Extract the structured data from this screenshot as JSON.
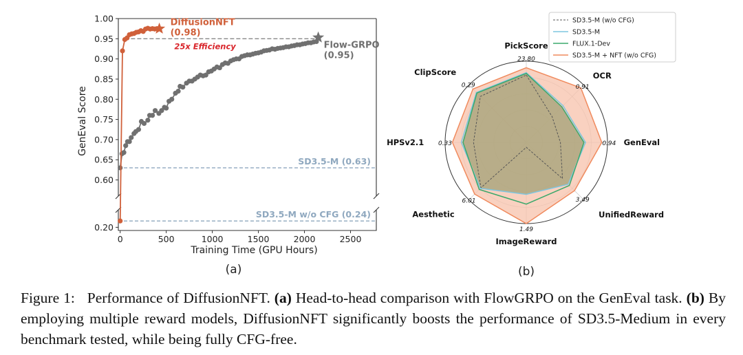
{
  "caption": {
    "figure_label": "Figure 1:",
    "text_1": "Performance of DiffusionNFT.",
    "part_a_label": "(a)",
    "text_2": "Head-to-head comparison with FlowGRPO on the GenEval task.",
    "part_b_label": "(b)",
    "text_3": "By employing multiple reward models, DiffusionNFT significantly boosts the performance of SD3.5-Medium in every benchmark tested, while being fully CFG-free."
  },
  "chart_data": [
    {
      "type": "line",
      "panel_label": "(a)",
      "xlabel": "Training Time (GPU Hours)",
      "ylabel": "GenEval Score",
      "xlim": [
        -20,
        2780
      ],
      "ylim_upper": [
        0.56,
        1.0
      ],
      "ylim_lower": [
        0.18,
        0.31
      ],
      "broken_y_axis": true,
      "x_ticks": [
        0,
        500,
        1000,
        1500,
        2000,
        2500
      ],
      "y_ticks_upper": [
        "0.60",
        "0.65",
        "0.70",
        "0.75",
        "0.80",
        "0.85",
        "0.90",
        "0.95",
        "1.00"
      ],
      "y_ticks_lower": [
        "0.20"
      ],
      "colors": {
        "diffusionnft": "#d0603a",
        "flowgrpo": "#707070",
        "baseline": "#8fa8bf"
      },
      "series": [
        {
          "name": "DiffusionNFT",
          "label": "DiffusionNFT",
          "final_label": "(0.98)",
          "x": [
            0,
            25,
            50,
            75,
            100,
            125,
            150,
            175,
            200,
            225,
            250,
            275,
            300,
            325,
            350,
            375,
            400,
            425
          ],
          "y": [
            0.24,
            0.92,
            0.948,
            0.952,
            0.96,
            0.962,
            0.963,
            0.966,
            0.967,
            0.97,
            0.968,
            0.974,
            0.976,
            0.974,
            0.975,
            0.974,
            0.975,
            0.975
          ]
        },
        {
          "name": "Flow-GRPO",
          "label": "Flow-GRPO",
          "final_label": "(0.95)",
          "x": [
            0,
            20,
            40,
            60,
            80,
            100,
            120,
            150,
            170,
            200,
            230,
            260,
            300,
            320,
            350,
            380,
            420,
            450,
            480,
            500,
            530,
            560,
            600,
            630,
            650,
            680,
            720,
            750,
            780,
            810,
            840,
            870,
            900,
            930,
            960,
            990,
            1020,
            1050,
            1080,
            1110,
            1140,
            1170,
            1200,
            1230,
            1260,
            1290,
            1320,
            1350,
            1380,
            1410,
            1440,
            1470,
            1500,
            1530,
            1560,
            1590,
            1620,
            1650,
            1680,
            1710,
            1740,
            1770,
            1800,
            1830,
            1860,
            1890,
            1920,
            1950,
            1980,
            2010,
            2040,
            2070,
            2100,
            2130,
            2150
          ],
          "y": [
            0.63,
            0.665,
            0.668,
            0.685,
            0.695,
            0.695,
            0.705,
            0.715,
            0.72,
            0.725,
            0.745,
            0.74,
            0.748,
            0.76,
            0.76,
            0.772,
            0.765,
            0.772,
            0.78,
            0.778,
            0.795,
            0.8,
            0.815,
            0.82,
            0.832,
            0.83,
            0.84,
            0.845,
            0.845,
            0.85,
            0.855,
            0.86,
            0.858,
            0.86,
            0.868,
            0.87,
            0.875,
            0.88,
            0.878,
            0.886,
            0.89,
            0.889,
            0.895,
            0.898,
            0.9,
            0.9,
            0.906,
            0.908,
            0.91,
            0.91,
            0.912,
            0.914,
            0.915,
            0.917,
            0.92,
            0.921,
            0.922,
            0.925,
            0.924,
            0.926,
            0.927,
            0.928,
            0.93,
            0.93,
            0.932,
            0.933,
            0.935,
            0.935,
            0.937,
            0.938,
            0.94,
            0.94,
            0.942,
            0.943,
            0.953
          ]
        }
      ],
      "reference_lines": [
        {
          "label": "SD3.5-M (0.63)",
          "y": 0.63
        },
        {
          "label": "SD3.5-M w/o CFG (0.24)",
          "y": 0.24
        }
      ],
      "annotation": "25x Efficiency",
      "annotation_line_y": 0.95
    },
    {
      "type": "radar",
      "panel_label": "(b)",
      "axes": [
        {
          "name": "PickScore",
          "value_label": "23.80"
        },
        {
          "name": "OCR",
          "value_label": "0.91"
        },
        {
          "name": "GenEval",
          "value_label": "0.94"
        },
        {
          "name": "UnifiedReward",
          "value_label": "3.49"
        },
        {
          "name": "ImageReward",
          "value_label": "1.49"
        },
        {
          "name": "Aesthetic",
          "value_label": "6.01"
        },
        {
          "name": "HPSv2.1",
          "value_label": "0.33"
        },
        {
          "name": "ClipScore",
          "value_label": "0.29"
        }
      ],
      "series": [
        {
          "name": "SD3.5-M (w/o CFG)",
          "color": "#555555",
          "style": "dashed",
          "values": [
            0.83,
            0.45,
            0.42,
            0.63,
            0.06,
            0.79,
            0.65,
            0.8
          ]
        },
        {
          "name": "SD3.5-M",
          "color": "#7fc6e0",
          "style": "solid",
          "values": [
            0.86,
            0.64,
            0.73,
            0.73,
            0.64,
            0.8,
            0.8,
            0.87
          ]
        },
        {
          "name": "FLUX.1-Dev",
          "color": "#3aa86b",
          "style": "solid",
          "values": [
            0.85,
            0.62,
            0.71,
            0.75,
            0.76,
            0.82,
            0.78,
            0.86
          ]
        },
        {
          "name": "SD3.5-M + NFT (w/o CFG)",
          "color": "#f08a5d",
          "style": "solid",
          "fill": "#f7c2ab",
          "values": [
            0.92,
            0.95,
            0.93,
            0.84,
            1.0,
            0.9,
            0.91,
            0.93
          ]
        }
      ],
      "overlap_fill": "#a8a47a",
      "grid_rings": 5
    }
  ]
}
